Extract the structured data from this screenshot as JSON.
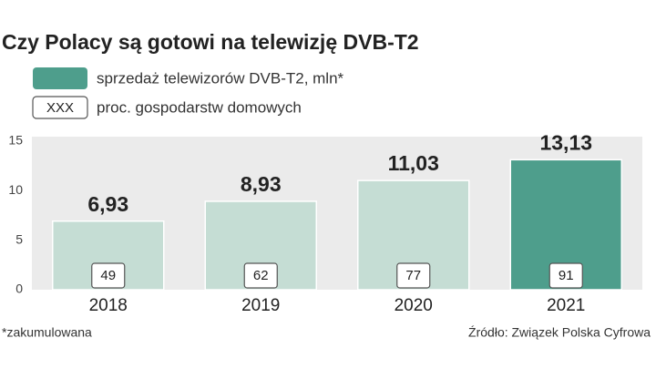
{
  "chart_data": {
    "type": "bar",
    "title": "Czy Polacy są gotowi na telewizję DVB-T2",
    "categories": [
      "2018",
      "2019",
      "2020",
      "2021"
    ],
    "series": [
      {
        "name": "sprzedaż telewizorów DVB-T2, mln*",
        "color": "#4e9e8c",
        "colors": [
          "#c5ddd4",
          "#c5ddd4",
          "#c5ddd4",
          "#4e9e8c"
        ],
        "values": [
          6.93,
          8.93,
          11.03,
          13.13
        ],
        "value_labels": [
          "6,93",
          "8,93",
          "11,03",
          "13,13"
        ]
      },
      {
        "name": "proc. gospodarstw domowych",
        "marker_label": "XXX",
        "values": [
          49,
          62,
          77,
          91
        ]
      }
    ],
    "ylim": [
      0,
      15
    ],
    "yticks": [
      0,
      5,
      10,
      15
    ],
    "grid": false,
    "note": "*zakumulowana",
    "source": "Źródło: Związek Polska Cyfrowa"
  }
}
